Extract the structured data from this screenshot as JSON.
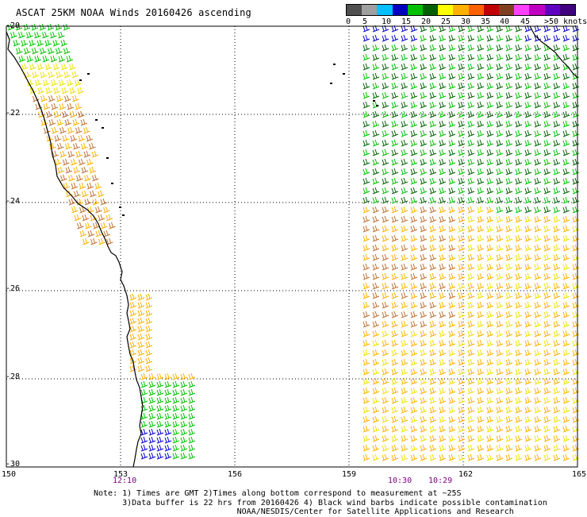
{
  "title": "ASCAT 25KM NOAA Winds 20160426 ascending",
  "legend": {
    "colors": [
      "#505050",
      "#a0a0a0",
      "#00c0ff",
      "#0000c0",
      "#00c000",
      "#006000",
      "#ffff00",
      "#ffb000",
      "#ff6000",
      "#c00000",
      "#804020",
      "#ff40ff",
      "#c000c0",
      "#6000c0",
      "#400080"
    ],
    "labels": [
      "0",
      "5",
      "10",
      "15",
      "20",
      "25",
      "30",
      "35",
      "40",
      "45",
      ">50 knots"
    ]
  },
  "lat_labels": [
    "-20",
    "-22",
    "-24",
    "-26",
    "-28",
    "-30"
  ],
  "lon_labels": [
    "150",
    "153",
    "156",
    "159",
    "162",
    "165"
  ],
  "time_labels": [
    "12:10",
    "10:30",
    "10:29"
  ],
  "notes": [
    "Note: 1) Times are GMT 2)Times along bottom correspond to measurement at ~25S",
    "      3)Data buffer is 22 hrs from 20160426 4) Black wind barbs indicate possible contamination",
    "                              NOAA/NESDIS/Center for Satellite Applications and Research"
  ]
}
